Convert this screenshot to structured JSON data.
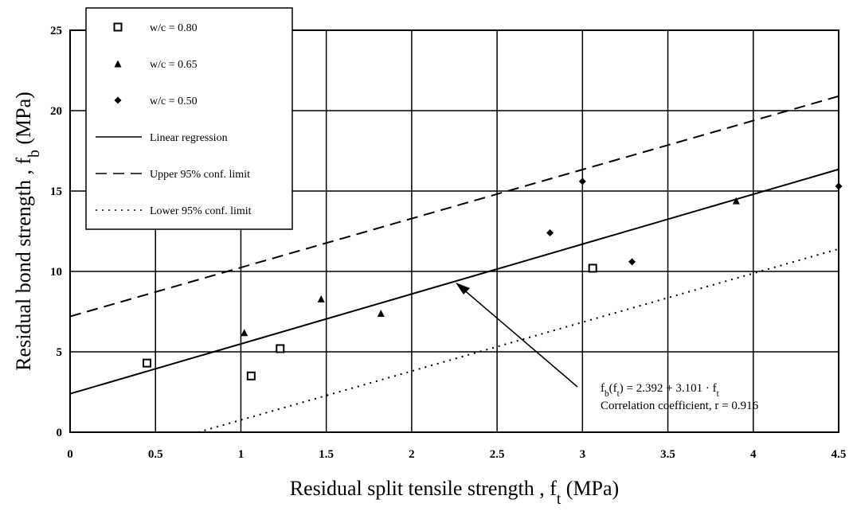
{
  "chart_data": {
    "type": "scatter",
    "xlabel": [
      {
        "text": "Residual split tensile  strength , f"
      },
      {
        "text": "t",
        "sub": true
      },
      {
        "text": " (MPa)"
      }
    ],
    "ylabel": [
      {
        "text": "Residual bond strength , f"
      },
      {
        "text": "b",
        "sub": true
      },
      {
        "text": " (MPa)"
      }
    ],
    "xlim": [
      0,
      4.5
    ],
    "ylim": [
      0,
      25
    ],
    "xticks": [
      0,
      0.5,
      1,
      1.5,
      2,
      2.5,
      3,
      3.5,
      4,
      4.5
    ],
    "yticks": [
      0,
      5,
      10,
      15,
      20,
      25
    ],
    "grid": true,
    "legend": "upper left",
    "series": [
      {
        "name": "w/c = 0.80",
        "type": "scatter",
        "marker": "square",
        "color": "#000000",
        "x": [
          0.45,
          1.06,
          1.23,
          3.06
        ],
        "values": [
          4.3,
          3.5,
          5.2,
          10.2
        ]
      },
      {
        "name": "w/c = 0.65",
        "type": "scatter",
        "marker": "triangle",
        "color": "#000000",
        "x": [
          1.02,
          1.47,
          1.82,
          3.9
        ],
        "values": [
          6.2,
          8.3,
          7.4,
          14.4
        ]
      },
      {
        "name": "w/c = 0.50",
        "type": "scatter",
        "marker": "diamond",
        "color": "#000000",
        "x": [
          2.81,
          3.0,
          3.29,
          4.5
        ],
        "values": [
          12.4,
          15.6,
          10.6,
          15.3
        ]
      },
      {
        "name": "Linear regression",
        "type": "line",
        "dash": "solid",
        "color": "#000000",
        "x": [
          0,
          4.5
        ],
        "values": [
          2.392,
          16.35
        ]
      },
      {
        "name": "Upper 95% conf. limit",
        "type": "line",
        "dash": "dashed",
        "color": "#000000",
        "x": [
          0,
          4.5
        ],
        "values": [
          7.2,
          20.9
        ]
      },
      {
        "name": "Lower 95% conf. limit",
        "type": "line",
        "dash": "dotted",
        "color": "#000000",
        "x": [
          0.75,
          4.5
        ],
        "values": [
          0,
          11.4
        ]
      }
    ],
    "annotation": [
      [
        {
          "text": "f"
        },
        {
          "text": "b",
          "sub": true
        },
        {
          "text": "(f"
        },
        {
          "text": "t",
          "sub": true
        },
        {
          "text": ") = 2.392 + 3.101 · f"
        },
        {
          "text": "t",
          "sub": true
        }
      ],
      [
        {
          "text": "Correlation coefficient, r = 0.916"
        }
      ]
    ]
  }
}
